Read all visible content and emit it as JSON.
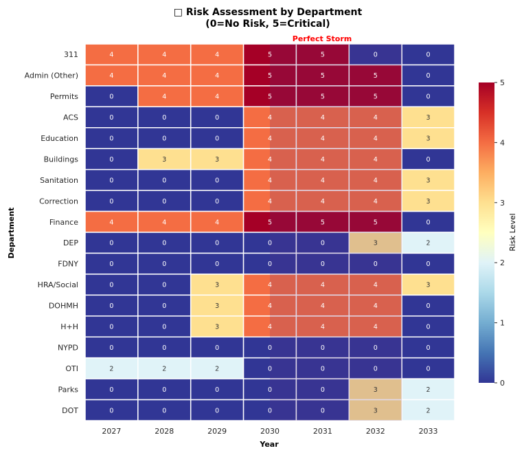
{
  "chart_data": {
    "type": "heatmap",
    "title_line1": "□ Risk Assessment by Department",
    "title_line2": "(0=No Risk, 5=Critical)",
    "xlabel": "Year",
    "ylabel": "Department",
    "x": [
      "2027",
      "2028",
      "2029",
      "2030",
      "2031",
      "2032",
      "2033"
    ],
    "y": [
      "311",
      "Admin (Other)",
      "Permits",
      "ACS",
      "Education",
      "Buildings",
      "Sanitation",
      "Correction",
      "Finance",
      "DEP",
      "FDNY",
      "HRA/Social",
      "DOHMH",
      "H+H",
      "NYPD",
      "OTI",
      "Parks",
      "DOT"
    ],
    "values": [
      [
        4,
        4,
        4,
        5,
        5,
        0,
        0
      ],
      [
        4,
        4,
        4,
        5,
        5,
        5,
        0
      ],
      [
        0,
        4,
        4,
        5,
        5,
        5,
        0
      ],
      [
        0,
        0,
        0,
        4,
        4,
        4,
        3
      ],
      [
        0,
        0,
        0,
        4,
        4,
        4,
        3
      ],
      [
        0,
        3,
        3,
        4,
        4,
        4,
        0
      ],
      [
        0,
        0,
        0,
        4,
        4,
        4,
        3
      ],
      [
        0,
        0,
        0,
        4,
        4,
        4,
        3
      ],
      [
        4,
        4,
        4,
        5,
        5,
        5,
        0
      ],
      [
        0,
        0,
        0,
        0,
        0,
        3,
        2
      ],
      [
        0,
        0,
        0,
        0,
        0,
        0,
        0
      ],
      [
        0,
        0,
        3,
        4,
        4,
        4,
        3
      ],
      [
        0,
        0,
        3,
        4,
        4,
        4,
        0
      ],
      [
        0,
        0,
        3,
        4,
        4,
        4,
        0
      ],
      [
        0,
        0,
        0,
        0,
        0,
        0,
        0
      ],
      [
        2,
        2,
        2,
        0,
        0,
        0,
        0
      ],
      [
        0,
        0,
        0,
        0,
        0,
        3,
        2
      ],
      [
        0,
        0,
        0,
        0,
        0,
        3,
        2
      ]
    ],
    "annotation": {
      "text": "Perfect Storm",
      "color": "#ff0000",
      "x_range": [
        "2030",
        "2032"
      ]
    },
    "colorbar": {
      "label": "Risk Level",
      "min": 0,
      "max": 5,
      "ticks": [
        0,
        1,
        2,
        3,
        4,
        5
      ],
      "colormap": "RdYlBu_r"
    },
    "palette": {
      "0": "#313695",
      "1": "#4575b4",
      "2": "#e0f3f8",
      "3": "#fee090",
      "4": "#f46d43",
      "5": "#a50026"
    },
    "highlight_shade": "#5b2a83"
  }
}
